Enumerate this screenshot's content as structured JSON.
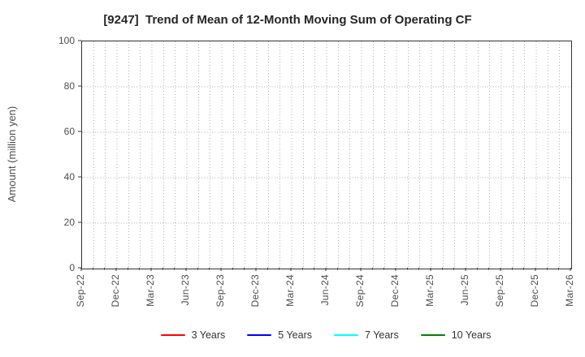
{
  "chart_data": {
    "type": "line",
    "title": "[9247]  Trend of Mean of 12-Month Moving Sum of Operating CF",
    "ylabel": "Amount (million yen)",
    "xlabel": "",
    "ylim": [
      0,
      100
    ],
    "yticks": [
      0,
      20,
      40,
      60,
      80,
      100
    ],
    "x_tick_labels": [
      "Sep-22",
      "Dec-22",
      "Mar-23",
      "Jun-23",
      "Sep-23",
      "Dec-23",
      "Mar-24",
      "Jun-24",
      "Sep-24",
      "Dec-24",
      "Mar-25",
      "Jun-25",
      "Sep-25",
      "Dec-25",
      "Mar-26"
    ],
    "months_per_label": 3,
    "grid": "dotted, vertical line each month, horizontal line each 20 units",
    "legend_position": "bottom-center",
    "series": [
      {
        "name": "3 Years",
        "color": "#ff0000",
        "values": []
      },
      {
        "name": "5 Years",
        "color": "#0000ff",
        "values": []
      },
      {
        "name": "7 Years",
        "color": "#00ffff",
        "values": []
      },
      {
        "name": "10 Years",
        "color": "#008000",
        "values": []
      }
    ]
  },
  "colors": {
    "background": "#ffffff",
    "title_text": "#262626",
    "tick_text": "#4d4d4d",
    "axis_border": "#333333",
    "grid_line": "#b0b0b0",
    "legend_text": "#333333"
  }
}
